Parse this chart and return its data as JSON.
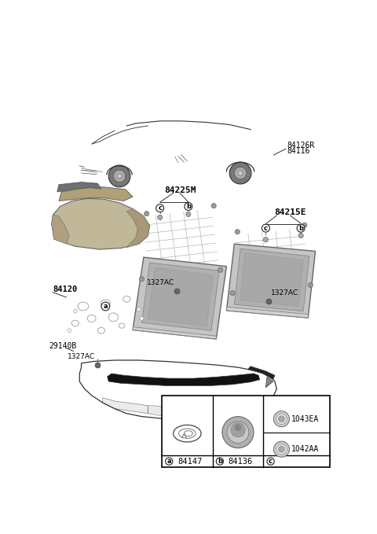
{
  "bg_color": "#ffffff",
  "fig_width": 4.8,
  "fig_height": 6.79,
  "dpi": 100,
  "labels": {
    "car_label_1": "84126R",
    "car_label_2": "84116",
    "pad1_label": "84225M",
    "pad2_label": "84215E",
    "firewall_label": "84120",
    "screw_label": "1327AC",
    "part_29140B": "29140B",
    "legend_a_num": "84147",
    "legend_b_num": "84136",
    "legend_c1_num": "1043EA",
    "legend_c2_num": "1042AA"
  },
  "colors": {
    "bg": "#ffffff",
    "outline": "#222222",
    "car_floor": "#111111",
    "pad_face": "#b8b8b8",
    "pad_inner": "#a0a0a0",
    "pad_edge": "#888888",
    "pad_shadow": "#888888",
    "fw_face": "#c0b090",
    "fw_mid": "#a89870",
    "fw_dark": "#807060",
    "dark_piece": "#606060",
    "screw_dot": "#666666",
    "label_line": "#333333",
    "legend_border": "#000000"
  }
}
